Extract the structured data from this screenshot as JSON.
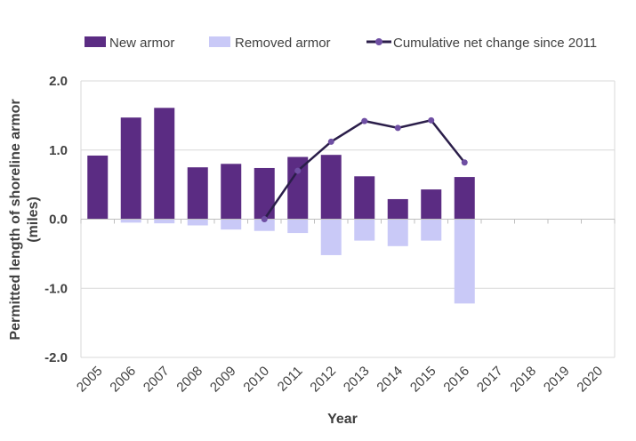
{
  "chart_data": {
    "type": "bar",
    "categories": [
      "2005",
      "2006",
      "2007",
      "2008",
      "2009",
      "2010",
      "2011",
      "2012",
      "2013",
      "2014",
      "2015",
      "2016",
      "2017",
      "2018",
      "2019",
      "2020"
    ],
    "series": [
      {
        "name": "New armor",
        "kind": "bar",
        "color": "#5B2C83",
        "values": [
          0.92,
          1.47,
          1.61,
          0.75,
          0.8,
          0.74,
          0.9,
          0.93,
          0.62,
          0.29,
          0.43,
          0.61,
          null,
          null,
          null,
          null
        ]
      },
      {
        "name": "Removed armor",
        "kind": "bar",
        "color": "#C9C9F7",
        "values": [
          0.0,
          -0.05,
          -0.06,
          -0.09,
          -0.15,
          -0.17,
          -0.2,
          -0.52,
          -0.31,
          -0.39,
          -0.31,
          -1.22,
          null,
          null,
          null,
          null
        ]
      },
      {
        "name": "Cumulative net change since 2011",
        "kind": "line",
        "color": "#2B1E4A",
        "marker_color": "#6F4FA3",
        "values": [
          null,
          null,
          null,
          null,
          null,
          0.0,
          0.7,
          1.12,
          1.42,
          1.32,
          1.43,
          0.82,
          null,
          null,
          null,
          null
        ]
      }
    ],
    "xlabel": "Year",
    "ylabel": "Permitted length of shoreline armor (miles)",
    "ylabel_lines": [
      "Permitted length of shoreline armor",
      "(miles)"
    ],
    "ylim": [
      -2.0,
      2.0
    ],
    "yticks": [
      -2.0,
      -1.0,
      0.0,
      1.0,
      2.0
    ],
    "ytick_labels": [
      "-2.0",
      "-1.0",
      "0.0",
      "1.0",
      "2.0"
    ],
    "grid": true,
    "legend_position": "top"
  }
}
